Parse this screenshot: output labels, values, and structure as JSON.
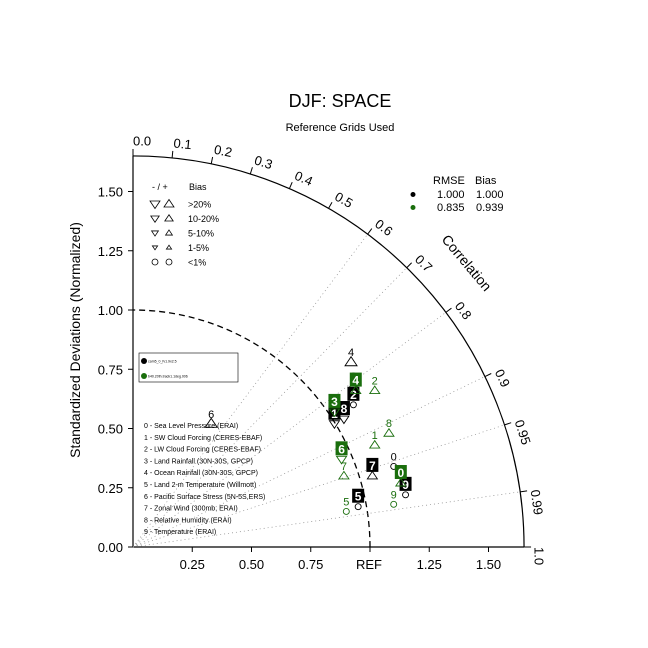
{
  "chart_data": {
    "type": "scatter",
    "title": "DJF: SPACE",
    "subtitle": "Reference Grids Used",
    "ylabel": "Standardized Deviations (Normalized)",
    "arc_label": "Correlation",
    "ref_label": "REF",
    "radial_max": 1.65,
    "ref_std": 1.0,
    "x_ticks": [
      "0.25",
      "0.50",
      "0.75",
      "1.25",
      "1.50"
    ],
    "x_tick_values": [
      0.25,
      0.5,
      0.75,
      1.25,
      1.5
    ],
    "y_ticks": [
      "0.00",
      "0.25",
      "0.50",
      "0.75",
      "1.00",
      "1.25",
      "1.50"
    ],
    "y_tick_values": [
      0.0,
      0.25,
      0.5,
      0.75,
      1.0,
      1.25,
      1.5
    ],
    "corr_ticks": [
      "0.0",
      "0.1",
      "0.2",
      "0.3",
      "0.4",
      "0.5",
      "0.6",
      "0.7",
      "0.8",
      "0.9",
      "0.95",
      "0.99",
      "1.0"
    ],
    "corr_values": [
      0.0,
      0.1,
      0.2,
      0.3,
      0.4,
      0.5,
      0.6,
      0.7,
      0.8,
      0.9,
      0.95,
      0.99,
      1.0
    ],
    "corr_lines": [
      0.6,
      0.7,
      0.8,
      0.9,
      0.95,
      0.99
    ],
    "series": [
      {
        "name": "cam5_0_fv1.9x2.5",
        "color": "#000000",
        "rmse": "1.000",
        "bias": "1.000",
        "points": [
          {
            "label": "0",
            "x": 1.1,
            "y": 0.34,
            "marker": "circle",
            "boxed": false
          },
          {
            "label": "1",
            "x": 0.85,
            "y": 0.52,
            "marker": "tri-down",
            "boxed": true
          },
          {
            "label": "2",
            "x": 0.93,
            "y": 0.6,
            "marker": "circle",
            "boxed": true
          },
          {
            "label": "3",
            "x": 0.93,
            "y": 0.68,
            "marker": "tri-up",
            "boxed": false
          },
          {
            "label": "4",
            "x": 0.92,
            "y": 0.78,
            "marker": "tri-up-big",
            "boxed": false
          },
          {
            "label": "5",
            "x": 0.95,
            "y": 0.17,
            "marker": "circle",
            "boxed": true
          },
          {
            "label": "6",
            "x": 0.33,
            "y": 0.52,
            "marker": "tri-up-big",
            "boxed": false
          },
          {
            "label": "7",
            "x": 1.01,
            "y": 0.3,
            "marker": "tri-up",
            "boxed": true
          },
          {
            "label": "8",
            "x": 0.89,
            "y": 0.54,
            "marker": "tri-down",
            "boxed": true
          },
          {
            "label": "9",
            "x": 1.15,
            "y": 0.22,
            "marker": "circle",
            "boxed": true
          }
        ]
      },
      {
        "name": "b40.20th.track1.1deg.006",
        "color": "#1a6e0d",
        "rmse": "0.835",
        "bias": "0.939",
        "points": [
          {
            "label": "0",
            "x": 1.13,
            "y": 0.27,
            "marker": "tri-up",
            "boxed": true
          },
          {
            "label": "1",
            "x": 1.02,
            "y": 0.43,
            "marker": "tri-up",
            "boxed": false
          },
          {
            "label": "2",
            "x": 1.02,
            "y": 0.66,
            "marker": "tri-up",
            "boxed": false
          },
          {
            "label": "3",
            "x": 0.85,
            "y": 0.57,
            "marker": "tri-down",
            "boxed": true
          },
          {
            "label": "4",
            "x": 0.94,
            "y": 0.66,
            "marker": "tri-up",
            "boxed": true
          },
          {
            "label": "5",
            "x": 0.9,
            "y": 0.15,
            "marker": "circle",
            "boxed": false
          },
          {
            "label": "6",
            "x": 0.88,
            "y": 0.37,
            "marker": "tri-down",
            "boxed": true
          },
          {
            "label": "7",
            "x": 0.89,
            "y": 0.3,
            "marker": "tri-up",
            "boxed": false
          },
          {
            "label": "8",
            "x": 1.08,
            "y": 0.48,
            "marker": "tri-up",
            "boxed": false
          },
          {
            "label": "9",
            "x": 1.1,
            "y": 0.18,
            "marker": "circle",
            "boxed": false
          }
        ]
      }
    ],
    "variables": [
      "0 - Sea Level Pressure (ERAI)",
      "1 - SW Cloud Forcing (CERES-EBAF)",
      "2 - LW Cloud Forcing (CERES-EBAF)",
      "3 - Land Rainfall (30N-30S, GPCP)",
      "4 - Ocean Rainfall (30N-30S, GPCP)",
      "5 - Land 2-m Temperature (Willmott)",
      "6 - Pacific Surface Stress (5N-5S,ERS)",
      "7 - Zonal Wind (300mb, ERAI)",
      "8 - Relative Humidity (ERAI)",
      "9 - Temperature (ERAI)"
    ],
    "bias_legend": {
      "header_sign": "- / +",
      "header": "Bias",
      "rows": [
        ">20%",
        "10-20%",
        "5-10%",
        "1-5%",
        "<1%"
      ]
    },
    "stats_header": {
      "rmse": "RMSE",
      "bias": "Bias"
    },
    "grid": false
  }
}
